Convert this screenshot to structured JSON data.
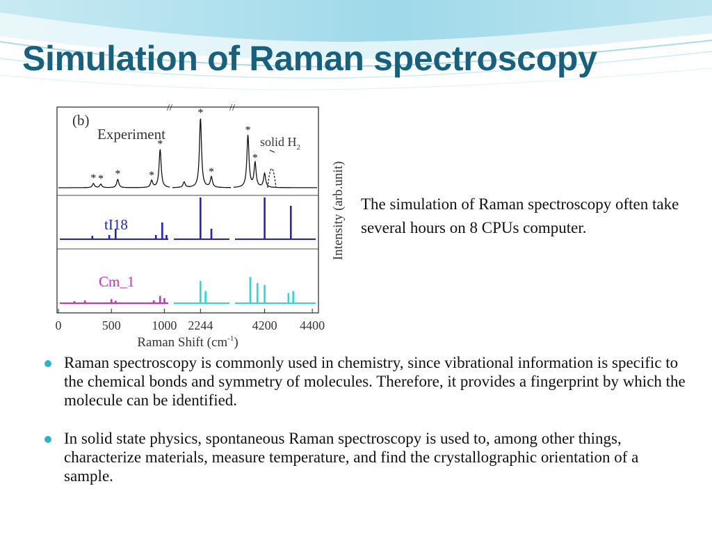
{
  "slide": {
    "title": "Simulation of Raman spectroscopy",
    "side_text": "The simulation of Raman spectroscopy often take several hours on 8 CPUs computer.",
    "bullets": [
      "Raman spectroscopy is commonly used in chemistry, since vibrational information is specific to the chemical bonds and symmetry of molecules. Therefore, it provides a fingerprint by which the molecule can be identified.",
      "In solid state physics, spontaneous Raman spectroscopy is used to, among other things, characterize materials, measure temperature, and find the crystallographic orientation of a sample."
    ],
    "colors": {
      "title": "#17607e",
      "bullet": "#2bb3c9"
    }
  },
  "chart_data": {
    "type": "line",
    "panel_label": "(b)",
    "xlabel": "Raman Shift (cm",
    "xlabel_superscript": "-1",
    "ylabel": "Intensity (arb.unit)",
    "x_ticks": [
      "0",
      "500",
      "1000",
      "2244",
      "4200",
      "4400"
    ],
    "axis_breaks": "x axis broken between 1000 and 2244 and between 2244 and 4200",
    "grid": false,
    "series": [
      {
        "name": "Experiment",
        "color": "#111111",
        "style": "spectrum",
        "peaks": [
          {
            "x": 330,
            "height": 0.06,
            "marker": "*"
          },
          {
            "x": 400,
            "height": 0.05,
            "marker": "*"
          },
          {
            "x": 560,
            "height": 0.12,
            "marker": "*"
          },
          {
            "x": 880,
            "height": 0.1,
            "marker": "*"
          },
          {
            "x": 960,
            "height": 0.55,
            "marker": "*"
          },
          {
            "x": 2160,
            "height": 0.08
          },
          {
            "x": 2244,
            "height": 1.0,
            "marker": "*"
          },
          {
            "x": 2300,
            "height": 0.15,
            "marker": "*"
          },
          {
            "x": 4130,
            "height": 0.75,
            "marker": "*"
          },
          {
            "x": 4160,
            "height": 0.35,
            "marker": "*"
          },
          {
            "x": 4200,
            "height": 0.2
          }
        ]
      },
      {
        "name": "solid H",
        "name_subscript": "2",
        "color": "#111111",
        "style": "dashed",
        "peaks": [
          {
            "x": 4230,
            "height": 0.55
          }
        ]
      },
      {
        "name": "tI18",
        "color": "#1c22c8",
        "style": "sticks",
        "peaks": [
          {
            "x": 320,
            "height": 0.08
          },
          {
            "x": 480,
            "height": 0.1
          },
          {
            "x": 540,
            "height": 0.25
          },
          {
            "x": 920,
            "height": 0.1
          },
          {
            "x": 980,
            "height": 0.4
          },
          {
            "x": 1020,
            "height": 0.1
          },
          {
            "x": 2244,
            "height": 1.0
          },
          {
            "x": 2300,
            "height": 0.25
          },
          {
            "x": 4200,
            "height": 1.0
          },
          {
            "x": 4310,
            "height": 0.8
          }
        ]
      },
      {
        "name": "Cm_1",
        "color": "#d528c8",
        "color_high": "#22dcdc",
        "style": "sticks",
        "peaks": [
          {
            "x": 150,
            "height": 0.05
          },
          {
            "x": 250,
            "height": 0.07
          },
          {
            "x": 500,
            "height": 0.1
          },
          {
            "x": 540,
            "height": 0.06
          },
          {
            "x": 900,
            "height": 0.07
          },
          {
            "x": 960,
            "height": 0.18
          },
          {
            "x": 1000,
            "height": 0.12
          },
          {
            "x": 2244,
            "height": 0.55
          },
          {
            "x": 2270,
            "height": 0.3
          },
          {
            "x": 4140,
            "height": 0.65
          },
          {
            "x": 4170,
            "height": 0.5
          },
          {
            "x": 4200,
            "height": 0.45
          },
          {
            "x": 4300,
            "height": 0.25
          },
          {
            "x": 4320,
            "height": 0.3
          }
        ]
      }
    ]
  }
}
